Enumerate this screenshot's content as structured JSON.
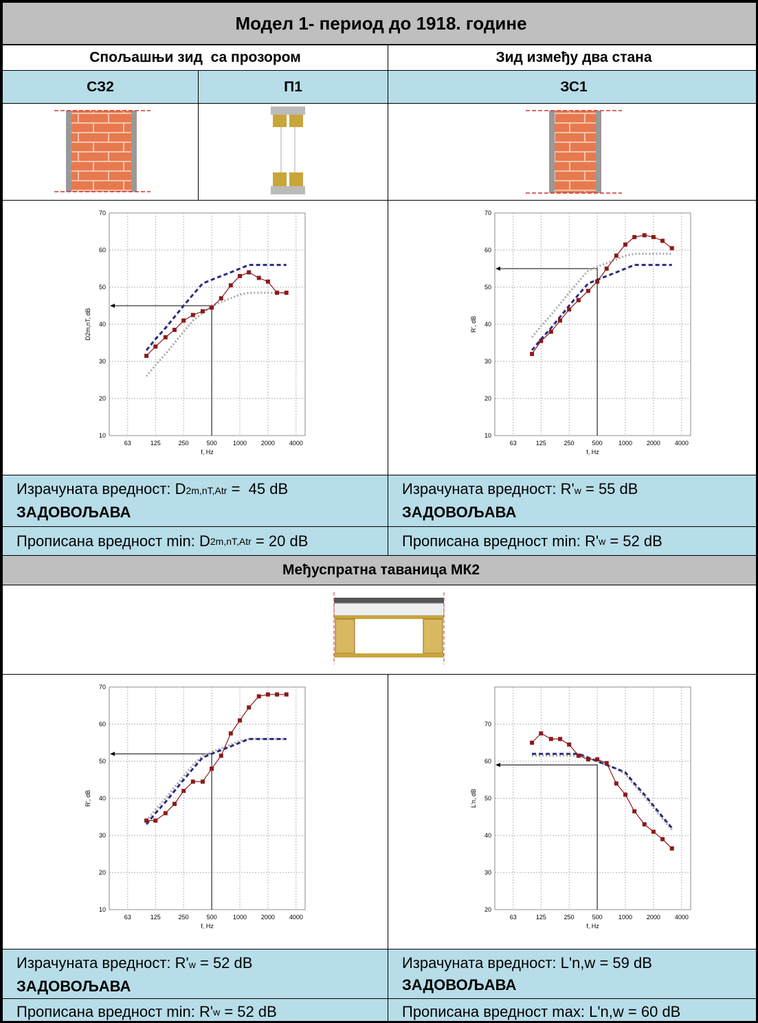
{
  "title": "Модел 1- период до 1918. године",
  "section1": {
    "left_heading": "Спољашњи зид  са прозором",
    "right_heading": "Зид између два стана",
    "codes": [
      "СЗ2",
      "П1",
      "ЗС1"
    ],
    "results": [
      {
        "computed": {
          "label": "Израчуната вредност:",
          "symbol": "D",
          "subscript": "2m,nT,Atr",
          "rest": "=  45 dB"
        },
        "verdict": "ЗАДОВОЉАВА",
        "required": {
          "label": "Прописана вредност min:",
          "symbol": "D",
          "subscript": "2m,nT,Atr",
          "rest": "= 20 dB"
        }
      },
      {
        "computed": {
          "label": "Израчуната вредност:",
          "symbol": "R'",
          "subscript": "w",
          "rest": "= 55 dB"
        },
        "verdict": "ЗАДОВОЉАВА",
        "required": {
          "label": "Прописана вредност min:",
          "symbol": "R'",
          "subscript": "w",
          "rest": "= 52 dB"
        }
      }
    ]
  },
  "section2": {
    "heading": "Међуспратна таваница МК2",
    "results": [
      {
        "computed": {
          "label": "Израчуната вредност:",
          "symbol": "R'",
          "subscript": "w",
          "rest": "= 52 dB"
        },
        "verdict": "ЗАДОВОЉАВА",
        "required": {
          "label": "Прописана вредност min:",
          "symbol": "R'",
          "subscript": "w",
          "rest": "= 52 dB"
        }
      },
      {
        "computed": {
          "label": "Израчуната вредност:",
          "symbol": "L'n,w",
          "rest": "= 59 dB"
        },
        "verdict": "ЗАДОВОЉАВА",
        "required": {
          "label": "Прописана вредност max:",
          "symbol": "L'n,w",
          "rest": "= 60 dB"
        }
      }
    ]
  },
  "chart_data": [
    {
      "type": "line",
      "x_label": "f, Hz",
      "y_label": "D2m,nT, dB",
      "xscale": "log",
      "grid": true,
      "x": [
        100,
        125,
        160,
        200,
        250,
        315,
        400,
        500,
        630,
        800,
        1000,
        1250,
        1600,
        2000,
        2500,
        3150
      ],
      "xlim": [
        40,
        5000
      ],
      "xticks": [
        63,
        125,
        250,
        500,
        1000,
        2000,
        4000
      ],
      "ylim": [
        10,
        70
      ],
      "yticks": [
        10,
        20,
        30,
        40,
        50,
        60,
        70
      ],
      "series": [
        {
          "color": "#a6a6a6",
          "line_style": "dotted",
          "values": [
            26,
            29,
            32,
            35,
            38,
            41,
            43,
            45,
            46,
            47,
            48,
            48.5,
            48.5,
            48.5,
            48.5,
            48.5
          ]
        },
        {
          "color": "#2b2b80",
          "line_style": "dashed",
          "values": [
            33,
            36,
            39,
            42,
            45,
            48,
            51,
            52,
            53,
            54,
            55,
            56,
            56,
            56,
            56,
            56
          ]
        },
        {
          "color": "#8b1a1a",
          "line_style": "solid",
          "marker": "square",
          "values": [
            31.5,
            34,
            36.5,
            38.5,
            41,
            42.5,
            43.5,
            44.5,
            47,
            50.5,
            53,
            54,
            52.5,
            51.5,
            48.5,
            48.5
          ]
        }
      ],
      "annotation": {
        "x": 500,
        "y": 45
      }
    },
    {
      "type": "line",
      "x_label": "f, Hz",
      "y_label": "R', dB",
      "xscale": "log",
      "grid": true,
      "x": [
        100,
        125,
        160,
        200,
        250,
        315,
        400,
        500,
        630,
        800,
        1000,
        1250,
        1600,
        2000,
        2500,
        3150
      ],
      "xlim": [
        40,
        5000
      ],
      "xticks": [
        63,
        125,
        250,
        500,
        1000,
        2000,
        4000
      ],
      "ylim": [
        10,
        70
      ],
      "yticks": [
        10,
        20,
        30,
        40,
        50,
        60,
        70
      ],
      "series": [
        {
          "color": "#a6a6a6",
          "line_style": "dotted",
          "values": [
            36.5,
            39.5,
            42.5,
            45.5,
            48.5,
            51.5,
            54.5,
            55.5,
            56.5,
            57.5,
            58.5,
            59,
            59,
            59,
            59,
            59
          ]
        },
        {
          "color": "#2b2b80",
          "line_style": "dashed",
          "values": [
            33,
            36,
            39,
            42,
            45,
            48,
            51,
            52,
            53,
            54,
            55,
            56,
            56,
            56,
            56,
            56
          ]
        },
        {
          "color": "#8b1a1a",
          "line_style": "solid",
          "marker": "square",
          "values": [
            32,
            35.5,
            38,
            41,
            44,
            46.5,
            49,
            51.5,
            55,
            58.5,
            61.5,
            63.5,
            64,
            63.5,
            62.5,
            60.5
          ]
        }
      ],
      "annotation": {
        "x": 500,
        "y": 55
      }
    },
    {
      "type": "line",
      "x_label": "f, Hz",
      "y_label": "R', dB",
      "xscale": "log",
      "grid": true,
      "x": [
        100,
        125,
        160,
        200,
        250,
        315,
        400,
        500,
        630,
        800,
        1000,
        1250,
        1600,
        2000,
        2500,
        3150
      ],
      "xlim": [
        40,
        5000
      ],
      "xticks": [
        63,
        125,
        250,
        500,
        1000,
        2000,
        4000
      ],
      "ylim": [
        10,
        70
      ],
      "yticks": [
        10,
        20,
        30,
        40,
        50,
        60,
        70
      ],
      "series": [
        {
          "color": "#a6a6a6",
          "line_style": "dotted",
          "values": [
            34,
            37,
            40,
            43,
            46,
            49,
            51.5,
            52.5,
            53.5,
            54.5,
            55.5,
            56,
            56,
            56,
            56,
            56
          ]
        },
        {
          "color": "#2b2b80",
          "line_style": "dashed",
          "values": [
            33,
            36,
            39,
            42,
            45,
            48,
            51,
            52,
            53,
            54,
            55,
            56,
            56,
            56,
            56,
            56
          ]
        },
        {
          "color": "#8b1a1a",
          "line_style": "solid",
          "marker": "square",
          "values": [
            34,
            34,
            36,
            38.5,
            42,
            44.5,
            44.5,
            48,
            51.5,
            57.5,
            61,
            64.5,
            67.5,
            68,
            68,
            68
          ]
        }
      ],
      "annotation": {
        "x": 500,
        "y": 52
      }
    },
    {
      "type": "line",
      "x_label": "f, Hz",
      "y_label": "L'n, dB",
      "xscale": "log",
      "grid": true,
      "x": [
        100,
        125,
        160,
        200,
        250,
        315,
        400,
        500,
        630,
        800,
        1000,
        1250,
        1600,
        2000,
        2500,
        3150
      ],
      "xlim": [
        40,
        5000
      ],
      "xticks": [
        63,
        125,
        250,
        500,
        1000,
        2000,
        4000
      ],
      "ylim": [
        20,
        80
      ],
      "yticks": [
        20,
        30,
        40,
        50,
        60,
        70
      ],
      "series": [
        {
          "color": "#a6a6a6",
          "line_style": "dotted",
          "values": [
            61.5,
            61.5,
            61.5,
            61.5,
            61.5,
            61.5,
            61,
            60,
            59,
            58,
            56.5,
            53.5,
            50.5,
            47.5,
            44.5,
            41.5
          ]
        },
        {
          "color": "#2b2b80",
          "line_style": "dashed",
          "values": [
            62,
            62,
            62,
            62,
            62,
            62,
            61,
            60,
            59,
            58,
            57,
            54,
            51,
            48,
            45,
            42
          ]
        },
        {
          "color": "#8b1a1a",
          "line_style": "solid",
          "marker": "square",
          "values": [
            65,
            67.5,
            66,
            66,
            64.5,
            61.5,
            60.5,
            60.5,
            59.5,
            54,
            51,
            46.5,
            43,
            41,
            39,
            36.5
          ]
        }
      ],
      "annotation": {
        "x": 500,
        "y": 59
      }
    }
  ]
}
